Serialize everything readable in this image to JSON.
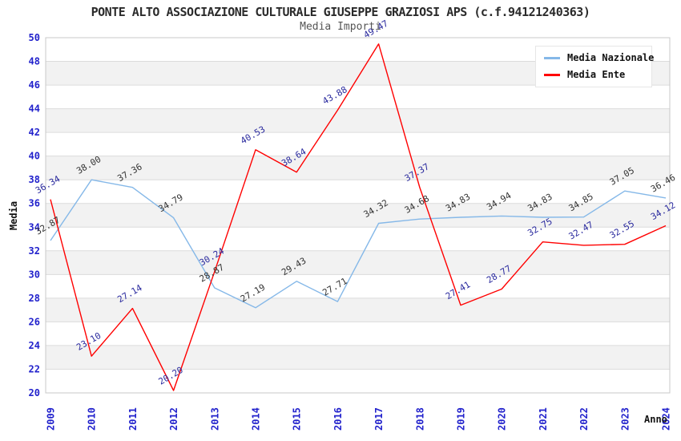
{
  "chart_data": {
    "type": "line",
    "title": "PONTE ALTO ASSOCIAZIONE CULTURALE GIUSEPPE GRAZIOSI APS (c.f.94121240363)",
    "subtitle": "Media Importi",
    "xlabel": "Anno",
    "ylabel": "Media",
    "x": [
      2009,
      2010,
      2011,
      2012,
      2013,
      2014,
      2015,
      2016,
      2017,
      2018,
      2019,
      2020,
      2021,
      2022,
      2023,
      2024
    ],
    "ylim": [
      20,
      50
    ],
    "ytick_step": 2,
    "legend_position": "top-right",
    "grid": "horizontal",
    "background_bands": true,
    "series": [
      {
        "name": "Media Nazionale",
        "color": "#85b8e8",
        "label_color": "#333333",
        "values": [
          32.87,
          38.0,
          37.36,
          34.79,
          28.87,
          27.19,
          29.43,
          27.71,
          34.32,
          34.68,
          34.83,
          34.94,
          34.83,
          34.85,
          37.05,
          36.46
        ]
      },
      {
        "name": "Media Ente",
        "color": "#ff0000",
        "label_color": "#2a2a9e",
        "values": [
          36.34,
          23.1,
          27.14,
          20.2,
          30.24,
          40.53,
          38.64,
          43.88,
          49.47,
          37.37,
          27.41,
          28.77,
          32.75,
          32.47,
          32.55,
          34.12
        ]
      }
    ],
    "colors": {
      "tick_label": "#2222cc",
      "grid": "#dcdcdc",
      "band": "#f2f2f2",
      "frame": "#c8c8c8"
    }
  }
}
